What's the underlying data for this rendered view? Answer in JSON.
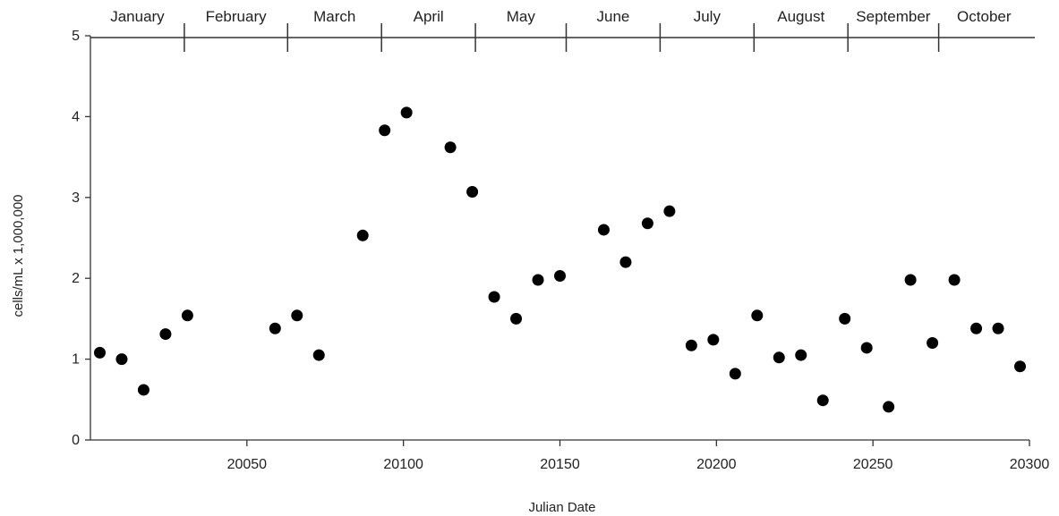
{
  "chart_data": {
    "type": "scatter",
    "xlabel": "Julian Date",
    "ylabel": "cells/mL x 1,000,000",
    "xlim": [
      20000,
      20300
    ],
    "ylim": [
      0,
      5
    ],
    "x_ticks": [
      20050,
      20100,
      20150,
      20200,
      20250,
      20300
    ],
    "y_ticks": [
      0,
      1,
      2,
      3,
      4,
      5
    ],
    "grid": false,
    "months": [
      {
        "name": "January",
        "start": 20000,
        "end": 20030
      },
      {
        "name": "February",
        "start": 20030,
        "end": 20063
      },
      {
        "name": "March",
        "start": 20063,
        "end": 20093
      },
      {
        "name": "April",
        "start": 20093,
        "end": 20123
      },
      {
        "name": "May",
        "start": 20123,
        "end": 20152
      },
      {
        "name": "June",
        "start": 20152,
        "end": 20182
      },
      {
        "name": "July",
        "start": 20182,
        "end": 20212
      },
      {
        "name": "August",
        "start": 20212,
        "end": 20242
      },
      {
        "name": "September",
        "start": 20242,
        "end": 20271
      },
      {
        "name": "October",
        "start": 20271,
        "end": 20300
      }
    ],
    "series": [
      {
        "points": [
          {
            "x": 20003,
            "y": 1.08
          },
          {
            "x": 20010,
            "y": 1.0
          },
          {
            "x": 20017,
            "y": 0.62
          },
          {
            "x": 20024,
            "y": 1.31
          },
          {
            "x": 20031,
            "y": 1.54
          },
          {
            "x": 20059,
            "y": 1.38
          },
          {
            "x": 20066,
            "y": 1.54
          },
          {
            "x": 20073,
            "y": 1.05
          },
          {
            "x": 20087,
            "y": 2.53
          },
          {
            "x": 20094,
            "y": 3.83
          },
          {
            "x": 20101,
            "y": 4.05
          },
          {
            "x": 20115,
            "y": 3.62
          },
          {
            "x": 20122,
            "y": 3.07
          },
          {
            "x": 20129,
            "y": 1.77
          },
          {
            "x": 20136,
            "y": 1.5
          },
          {
            "x": 20143,
            "y": 1.98
          },
          {
            "x": 20150,
            "y": 2.03
          },
          {
            "x": 20164,
            "y": 2.6
          },
          {
            "x": 20171,
            "y": 2.2
          },
          {
            "x": 20178,
            "y": 2.68
          },
          {
            "x": 20185,
            "y": 2.83
          },
          {
            "x": 20192,
            "y": 1.17
          },
          {
            "x": 20199,
            "y": 1.24
          },
          {
            "x": 20206,
            "y": 0.82
          },
          {
            "x": 20213,
            "y": 1.54
          },
          {
            "x": 20220,
            "y": 1.02
          },
          {
            "x": 20227,
            "y": 1.05
          },
          {
            "x": 20234,
            "y": 0.49
          },
          {
            "x": 20241,
            "y": 1.5
          },
          {
            "x": 20248,
            "y": 1.14
          },
          {
            "x": 20255,
            "y": 0.41
          },
          {
            "x": 20262,
            "y": 1.98
          },
          {
            "x": 20269,
            "y": 1.2
          },
          {
            "x": 20276,
            "y": 1.98
          },
          {
            "x": 20283,
            "y": 1.38
          },
          {
            "x": 20290,
            "y": 1.38
          },
          {
            "x": 20297,
            "y": 0.91
          }
        ]
      }
    ]
  }
}
